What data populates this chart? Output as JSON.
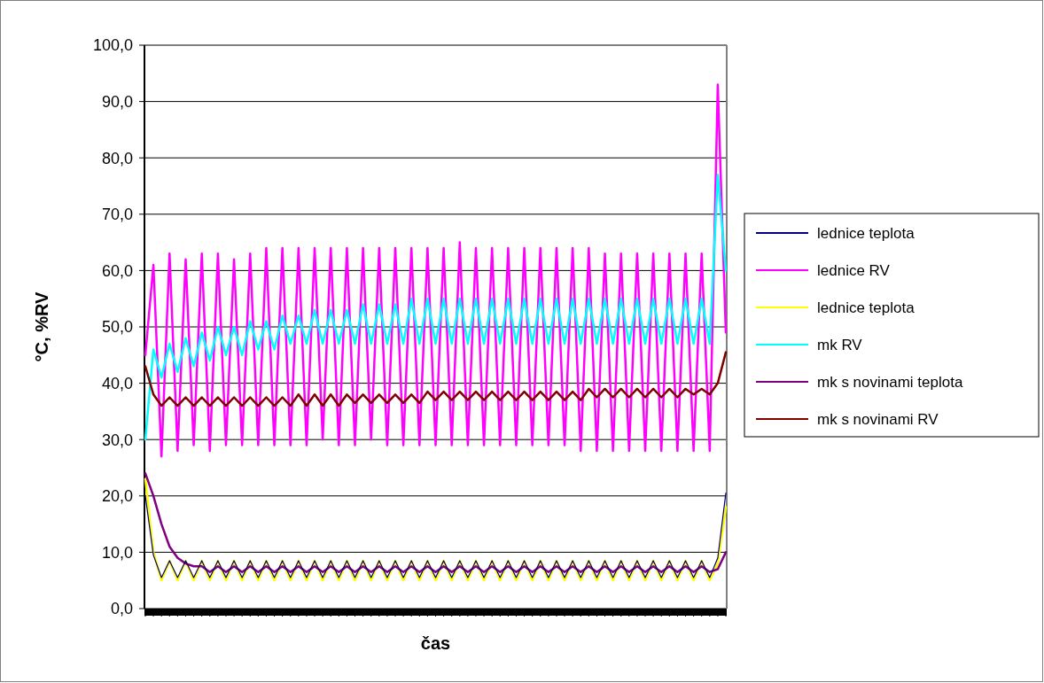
{
  "chart_data": {
    "type": "line",
    "xlabel": "čas",
    "ylabel": "°C, %RV",
    "categories": [
      null,
      null,
      null,
      null,
      null,
      null,
      null,
      null,
      null,
      null,
      null,
      null,
      null,
      null,
      null,
      null,
      null,
      null,
      null,
      null,
      null,
      null,
      null,
      null,
      null,
      null,
      null,
      null,
      null,
      null,
      null,
      null,
      null,
      null,
      null,
      null,
      null,
      null,
      null,
      null,
      null,
      null,
      null,
      null,
      null,
      null,
      null,
      null,
      null,
      null,
      null,
      null,
      null,
      null,
      null,
      null,
      null,
      null,
      null,
      null,
      null,
      null,
      null,
      null,
      null,
      null,
      null,
      null,
      null,
      null,
      null,
      null,
      null
    ],
    "ylim": [
      0,
      100
    ],
    "yticks": [
      {
        "value": 0,
        "label": "0,0"
      },
      {
        "value": 10,
        "label": "10,0"
      },
      {
        "value": 20,
        "label": "20,0"
      },
      {
        "value": 30,
        "label": "30,0"
      },
      {
        "value": 40,
        "label": "40,0"
      },
      {
        "value": 50,
        "label": "50,0"
      },
      {
        "value": 60,
        "label": "60,0"
      },
      {
        "value": 70,
        "label": "70,0"
      },
      {
        "value": 80,
        "label": "80,0"
      },
      {
        "value": 90,
        "label": "90,0"
      },
      {
        "value": 100,
        "label": "100,0"
      }
    ],
    "grid": "y",
    "legend": "right",
    "marker": "none",
    "line_style": "solid",
    "series": [
      {
        "name": "lednice teplota",
        "color": "#000080",
        "values": [
          20,
          9.5,
          5.5,
          8.5,
          5.5,
          8.5,
          5.5,
          8.5,
          5.5,
          8.5,
          5.5,
          8.5,
          5.5,
          8.5,
          5.5,
          8.5,
          5.5,
          8.5,
          5.5,
          8.5,
          5.5,
          8.5,
          5.5,
          8.5,
          5.5,
          8.5,
          5.5,
          8.5,
          5.5,
          8.5,
          5.5,
          8.5,
          5.5,
          8.5,
          5.5,
          8.5,
          5.5,
          8.5,
          5.5,
          8.5,
          5.5,
          8.5,
          5.5,
          8.5,
          5.5,
          8.5,
          5.5,
          8.5,
          5.5,
          8.5,
          5.5,
          8.5,
          5.5,
          8.5,
          5.5,
          8.5,
          5.5,
          8.5,
          5.5,
          8.5,
          5.5,
          8.5,
          5.5,
          8.5,
          5.5,
          8.5,
          5.5,
          8.5,
          5.5,
          8.5,
          5.5,
          9,
          20.5
        ]
      },
      {
        "name": "lednice RV",
        "color": "#ff00ff",
        "values": [
          45,
          61,
          27,
          63,
          28,
          62,
          29,
          63,
          28,
          63,
          29,
          62,
          29,
          63,
          29,
          64,
          29,
          64,
          29,
          64,
          29,
          64,
          30,
          64,
          29,
          64,
          29,
          64,
          30,
          64,
          29,
          64,
          29,
          64,
          29,
          64,
          29,
          64,
          29,
          65,
          29,
          64,
          29,
          64,
          29,
          64,
          29,
          64,
          29,
          64,
          29,
          64,
          29,
          64,
          28,
          64,
          28,
          63,
          28,
          63,
          28,
          63,
          28,
          63,
          28,
          63,
          28,
          63,
          28,
          63,
          28,
          93,
          49
        ]
      },
      {
        "name": "lednice teplota",
        "color": "#ffff00",
        "values": [
          23,
          10,
          5,
          8.5,
          5,
          8.5,
          5,
          8.5,
          5,
          8.5,
          5,
          8.5,
          5,
          8.5,
          5,
          8.5,
          5,
          8.5,
          5,
          8.5,
          5,
          8.5,
          5,
          8.5,
          5,
          8.5,
          5,
          8.5,
          5,
          8.5,
          5,
          8.5,
          5,
          8.5,
          5,
          8.5,
          5,
          8.5,
          5,
          8.5,
          5,
          8.5,
          5,
          8.5,
          5,
          8.5,
          5,
          8.5,
          5,
          8.5,
          5,
          8.5,
          5,
          8.5,
          5,
          8.5,
          5,
          8.5,
          5,
          8.5,
          5,
          8.5,
          5,
          8.5,
          5,
          8.5,
          5,
          8.5,
          5,
          8.5,
          5,
          8,
          18
        ]
      },
      {
        "name": "mk RV",
        "color": "#00ffff",
        "values": [
          30,
          46,
          41,
          47,
          42,
          48,
          43,
          49,
          44,
          50,
          45,
          50,
          45,
          51,
          46,
          51,
          46,
          52,
          47,
          52,
          47,
          53,
          47,
          53,
          47,
          53,
          47,
          54,
          47,
          54,
          47,
          54,
          47,
          55,
          47,
          55,
          47,
          55,
          47,
          55,
          47,
          55,
          47,
          55,
          47,
          55,
          47,
          55,
          47,
          55,
          47,
          55,
          47,
          55,
          47,
          55,
          47,
          55,
          47,
          55,
          47,
          55,
          47,
          55,
          47,
          55,
          47,
          55,
          47,
          55,
          47,
          77,
          60
        ]
      },
      {
        "name": "mk s novinami teplota",
        "color": "#800080",
        "values": [
          24,
          20,
          15,
          11,
          9,
          8,
          7.5,
          7.5,
          6.5,
          7.5,
          6.5,
          7.5,
          6.5,
          7.5,
          6.5,
          7.5,
          6.5,
          7.5,
          6.5,
          7.5,
          6.5,
          7.5,
          6.5,
          7.5,
          6.5,
          7.5,
          6.5,
          7.5,
          6.5,
          7.5,
          6.5,
          7.5,
          6.5,
          7.5,
          6.5,
          7.5,
          6.5,
          7.5,
          6.5,
          7.5,
          6.5,
          7.5,
          6.5,
          7.5,
          6.5,
          7.5,
          6.5,
          7.5,
          6.5,
          7.5,
          6.5,
          7.5,
          6.5,
          7.5,
          6.5,
          7.5,
          6.5,
          7.5,
          6.5,
          7.5,
          6.5,
          7.5,
          6.5,
          7.5,
          6.5,
          7.5,
          6.5,
          7.5,
          6.5,
          7.5,
          6.5,
          7,
          10
        ]
      },
      {
        "name": "mk s novinami RV",
        "color": "#800000",
        "values": [
          43,
          38,
          36,
          37.5,
          36,
          37.5,
          36,
          37.5,
          36,
          37.5,
          36,
          37.5,
          36,
          37.5,
          36,
          37.5,
          36,
          37.5,
          36,
          38,
          36,
          38,
          36,
          38,
          36,
          38,
          36.5,
          38,
          36.5,
          38,
          36.5,
          38,
          36.5,
          38,
          36.5,
          38.5,
          37,
          38.5,
          37,
          38.5,
          37,
          38.5,
          37,
          38.5,
          37,
          38.5,
          37,
          38.5,
          37,
          38.5,
          37,
          38.5,
          37,
          38.5,
          37,
          39,
          37.5,
          39,
          37.5,
          39,
          37.5,
          39,
          37.5,
          39,
          37.5,
          39,
          37.5,
          39,
          38,
          39,
          38,
          40,
          45.5
        ]
      }
    ]
  }
}
